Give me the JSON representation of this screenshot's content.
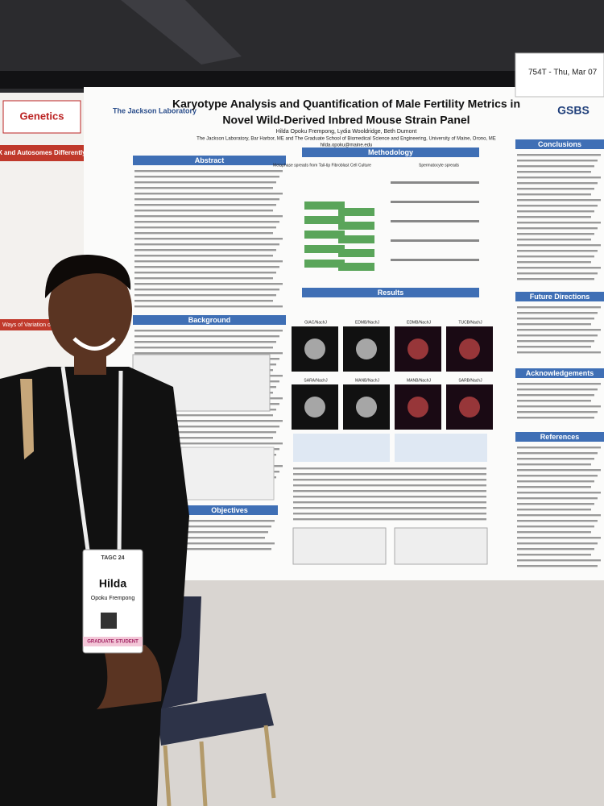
{
  "board_tag": {
    "session": "754T - Thu, Mar 07"
  },
  "side_poster": {
    "logo": "Genetics",
    "header": "X and Autosomes Differently",
    "section": "Ways of Variation on"
  },
  "poster": {
    "logo_left": "The Jackson Laboratory",
    "logo_right": "GSBS",
    "title_line1": "Karyotype Analysis and Quantification of Male Fertility Metrics in",
    "title_line2": "Novel Wild-Derived Inbred Mouse Strain Panel",
    "authors": "Hilda Opoku Frempong, Lydia Wooldridge, Beth Dumont",
    "affiliation": "The Jackson Laboratory, Bar Harbor, ME and The Graduate School of Biomedical Science and Engineering, University of Maine, Orono, ME",
    "email": "hilda.opoku@maine.edu",
    "sections": {
      "abstract": "Abstract",
      "background": "Background",
      "objectives": "Objectives",
      "methodology": "Methodology",
      "results": "Results",
      "conclusions": "Conclusions",
      "future": "Future Directions",
      "acknowledgements": "Acknowledgements",
      "references": "References"
    },
    "method_left": "Metaphase spreads from Tail-tip Fibroblast Cell Culture",
    "method_right": "Spermatocyte spreads",
    "result_images": [
      "GIAC/NachJ",
      "EDMB/NachJ",
      "EDMB/NachJ",
      "TUCB/NachJ",
      "SARA/NachJ",
      "MANB/NachJ",
      "MANB/NachJ",
      "SARB/NachJ"
    ]
  },
  "badge": {
    "event": "TAGC 24",
    "name": "Hilda",
    "surname": "Opoku Frempong",
    "ribbon": "GRADUATE STUDENT"
  }
}
